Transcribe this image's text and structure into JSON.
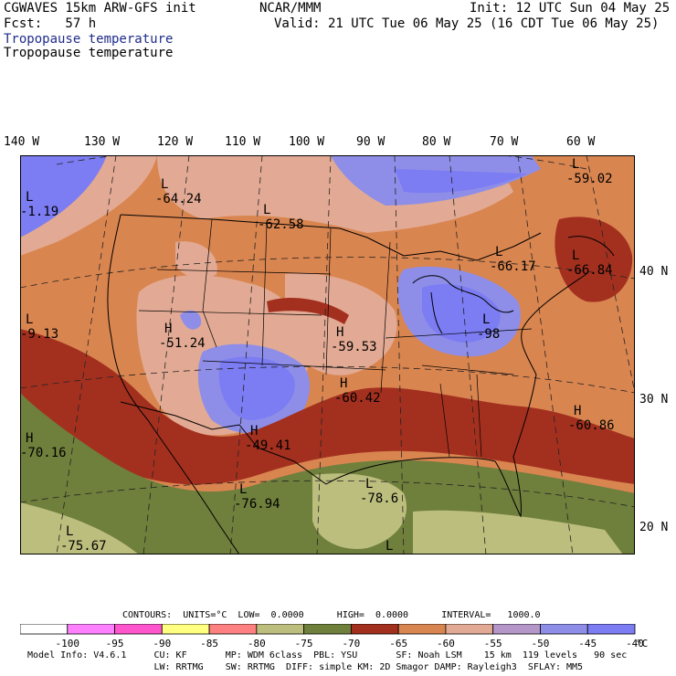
{
  "header": {
    "title": "CGWAVES 15km ARW-GFS init",
    "org": "NCAR/MMM",
    "init": "Init: 12 UTC Sun 04 May 25",
    "fcst": "Fcst:   57 h",
    "valid": "Valid: 21 UTC Tue 06 May 25 (16 CDT Tue 06 May 25)",
    "field_line1": "Tropopause temperature",
    "field_line2": "Tropopause temperature"
  },
  "map": {
    "lon_labels": [
      "140 W",
      "130 W",
      "120 W",
      "110 W",
      "100 W",
      "90 W",
      "80 W",
      "70 W",
      "60 W"
    ],
    "lat_labels": [
      "40 N",
      "30 N",
      "20 N"
    ],
    "highs_lows": [
      {
        "type": "L",
        "value": "-64.24"
      },
      {
        "type": "L",
        "value": "-62.58"
      },
      {
        "type": "H",
        "value": "-51.24"
      },
      {
        "type": "H",
        "value": "-49.41"
      },
      {
        "type": "H",
        "value": "-59.53"
      },
      {
        "type": "H",
        "value": "-60.42"
      },
      {
        "type": "L",
        "value": "-66.17"
      },
      {
        "type": "L",
        "value": "-66.84"
      },
      {
        "type": "L",
        "value": "-59.02"
      },
      {
        "type": "H",
        "value": "-60.86"
      },
      {
        "type": "L",
        "value": "-78.6"
      },
      {
        "type": "L",
        "value": "-76.94"
      },
      {
        "type": "L",
        "value": "-75.67"
      },
      {
        "type": "H",
        "value": "-70.16"
      },
      {
        "type": "L",
        "value": "-1.19"
      },
      {
        "type": "L",
        "value": "-9.13"
      },
      {
        "type": "L",
        "value": "-98"
      }
    ],
    "extra_L": "L",
    "colors": {
      "c_lt_-75": "#bcbe7e",
      "c_-75_-70": "#6f7f3c",
      "c_-70_-65": "#a3301f",
      "c_-65_-60": "#d98550",
      "c_-60_-55": "#e2aa94",
      "c_-55_-50": "#b596c8",
      "c_-50_-45": "#8e8ee8",
      "c_gt_-45": "#7c7cf3"
    }
  },
  "contours_line": "CONTOURS:  UNITS=°C  LOW=  0.0000      HIGH=  0.0000      INTERVAL=   1000.0",
  "colorbar": {
    "colors": [
      "#ffffff",
      "#ff80ff",
      "#ff55cc",
      "#ffff80",
      "#ff8080",
      "#bcbe7e",
      "#6f7f3c",
      "#a3301f",
      "#d98550",
      "#e2aa94",
      "#b596c8",
      "#8e8ee8",
      "#7c7cf3"
    ],
    "ticks": [
      "-100",
      "-95",
      "-90",
      "-85",
      "-80",
      "-75",
      "-70",
      "-65",
      "-60",
      "-55",
      "-50",
      "-45",
      "-40"
    ],
    "unit": "°C"
  },
  "model_info": {
    "line1": "Model Info: V4.6.1     CU: KF       MP: WDM 6class  PBL: YSU       SF: Noah LSM    15 km  119 levels   90 sec",
    "line2": "                       LW: RRTMG    SW: RRTMG  DIFF: simple KM: 2D Smagor DAMP: Rayleigh3  SFLAY: MM5"
  }
}
